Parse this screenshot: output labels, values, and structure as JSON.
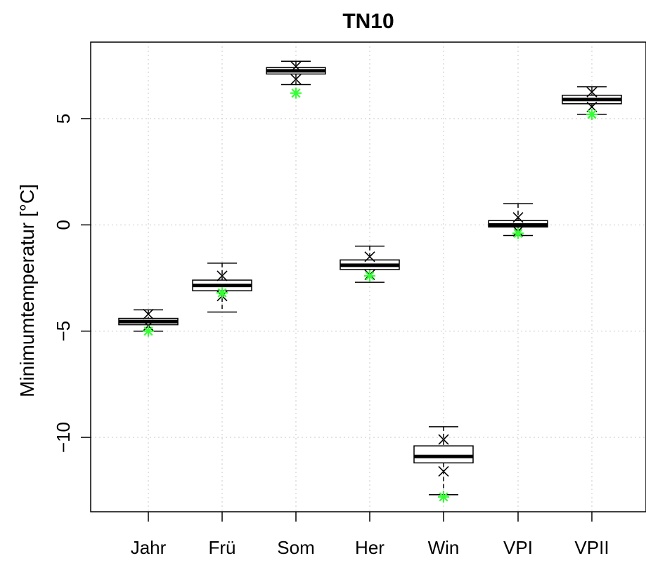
{
  "chart_data": {
    "type": "boxplot",
    "title": "TN10",
    "xlabel": "",
    "ylabel": "Minimumtemperatur [°C]",
    "ylim": [
      -13.5,
      8.6
    ],
    "yticks": [
      -10,
      -5,
      0,
      5
    ],
    "ytick_labels": [
      "−10",
      "−5",
      "0",
      "5"
    ],
    "grid": true,
    "categories": [
      "Jahr",
      "Frü",
      "Som",
      "Her",
      "Win",
      "VPI",
      "VPII"
    ],
    "boxes": [
      {
        "min": -5.0,
        "q1": -4.7,
        "median": -4.55,
        "q3": -4.4,
        "max": -4.0
      },
      {
        "min": -4.1,
        "q1": -3.1,
        "median": -2.85,
        "q3": -2.6,
        "max": -1.8
      },
      {
        "min": 6.6,
        "q1": 7.1,
        "median": 7.25,
        "q3": 7.4,
        "max": 7.7
      },
      {
        "min": -2.7,
        "q1": -2.1,
        "median": -1.9,
        "q3": -1.65,
        "max": -1.0
      },
      {
        "min": -12.7,
        "q1": -11.2,
        "median": -10.9,
        "q3": -10.4,
        "max": -9.5
      },
      {
        "min": -0.5,
        "q1": -0.1,
        "median": 0.0,
        "q3": 0.2,
        "max": 1.0
      },
      {
        "min": 5.2,
        "q1": 5.7,
        "median": 5.9,
        "q3": 6.1,
        "max": 6.5
      }
    ],
    "x_markers": [
      [
        -4.2,
        -4.75
      ],
      [
        -2.4,
        -3.35
      ],
      [
        7.45,
        6.85
      ],
      [
        -1.5,
        -2.35
      ],
      [
        -10.1,
        -11.6
      ],
      [
        0.35,
        -0.3
      ],
      [
        6.25,
        5.55
      ]
    ],
    "green_markers": [
      -5.0,
      -3.2,
      6.2,
      -2.4,
      -12.8,
      -0.4,
      5.2
    ],
    "colors": {
      "box": "#000000",
      "green_marker": "#33ff33",
      "grid": "#c8c8c8"
    }
  }
}
